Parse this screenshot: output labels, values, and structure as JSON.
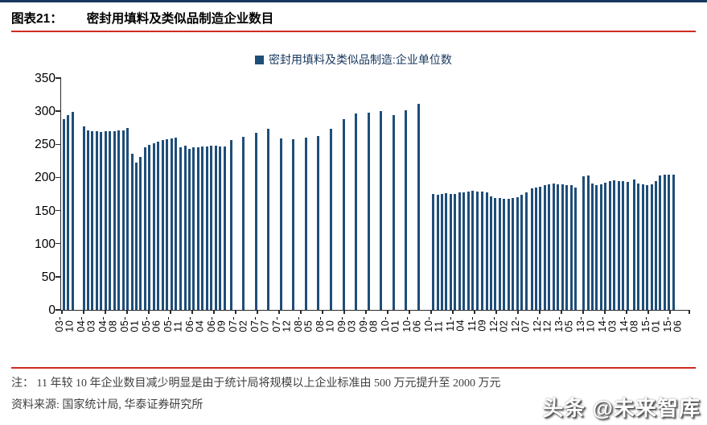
{
  "page": {
    "title_prefix": "图表21：",
    "title": "密封用填料及类似品制造企业数目",
    "note": "注： 11 年较 10 年企业数目减少明显是由于统计局将规模以上企业标准由 500 万元提升至 2000 万元",
    "source": "资料来源: 国家统计局, 华泰证券研究所",
    "watermark": "头条 @未来智库"
  },
  "colors": {
    "bar": "#1F4E79",
    "top_rule": "#17375E",
    "accent_red": "#D02B20",
    "legend_text": "#17375E",
    "note_text": "#3F3F3F"
  },
  "chart_data": {
    "type": "bar",
    "title": "密封用填料及类似品制造企业数目",
    "legend": "密封用填料及类似品制造:企业单位数",
    "ylabel": "",
    "xlabel": "",
    "ylim": [
      0,
      350
    ],
    "y_ticks": [
      0,
      50,
      100,
      150,
      200,
      250,
      300,
      350
    ],
    "grid": false,
    "legend_position": "top-center",
    "x_tick_labels": [
      "03-10",
      "04-03",
      "04-08",
      "05-01",
      "05-06",
      "05-11",
      "06-04",
      "06-09",
      "07-02",
      "07-07",
      "07-12",
      "08-05",
      "08-10",
      "09-03",
      "09-08",
      "10-01",
      "10-06",
      "10-11",
      "11-04",
      "11-09",
      "12-02",
      "12-07",
      "12-12",
      "13-05",
      "13-10",
      "14-03",
      "14-08",
      "15-01",
      "15-06"
    ],
    "x_unit": "px (time position on axis, labels every 5 months)",
    "bars": [
      [
        78,
        288
      ],
      [
        83.5,
        294
      ],
      [
        89,
        299
      ],
      [
        103,
        277
      ],
      [
        108.5,
        271
      ],
      [
        113.9,
        270
      ],
      [
        119.4,
        270
      ],
      [
        124.8,
        269
      ],
      [
        130.3,
        270
      ],
      [
        135.7,
        270
      ],
      [
        141.2,
        270
      ],
      [
        146.6,
        271
      ],
      [
        152.1,
        271
      ],
      [
        157.5,
        275
      ],
      [
        163,
        236
      ],
      [
        168.5,
        223
      ],
      [
        173.9,
        231
      ],
      [
        179.4,
        245
      ],
      [
        184.8,
        249
      ],
      [
        190.3,
        252
      ],
      [
        195.7,
        254
      ],
      [
        201.2,
        256
      ],
      [
        206.6,
        258
      ],
      [
        212.1,
        259
      ],
      [
        217.5,
        260
      ],
      [
        223.5,
        246
      ],
      [
        229,
        248
      ],
      [
        234.4,
        243
      ],
      [
        239.9,
        245
      ],
      [
        245.3,
        246
      ],
      [
        250.8,
        247
      ],
      [
        256.2,
        247
      ],
      [
        261.7,
        248
      ],
      [
        267.1,
        248
      ],
      [
        272.6,
        247
      ],
      [
        278,
        247
      ],
      [
        286,
        257
      ],
      [
        301.6,
        261
      ],
      [
        317.1,
        267
      ],
      [
        332.7,
        273
      ],
      [
        348.2,
        259
      ],
      [
        363.8,
        258
      ],
      [
        379.3,
        260
      ],
      [
        394.9,
        262
      ],
      [
        410.4,
        274
      ],
      [
        426,
        288
      ],
      [
        441.5,
        296
      ],
      [
        457.1,
        298
      ],
      [
        472.6,
        300
      ],
      [
        488.2,
        294
      ],
      [
        503.7,
        301
      ],
      [
        519.3,
        311
      ],
      [
        537.5,
        175
      ],
      [
        543,
        174
      ],
      [
        548.4,
        175
      ],
      [
        553.9,
        176
      ],
      [
        559.3,
        175
      ],
      [
        564.8,
        175
      ],
      [
        570.2,
        177
      ],
      [
        575.7,
        178
      ],
      [
        581.1,
        179
      ],
      [
        586.6,
        180
      ],
      [
        592,
        179
      ],
      [
        598.5,
        179
      ],
      [
        604,
        178
      ],
      [
        609.4,
        171
      ],
      [
        614.9,
        169
      ],
      [
        620.3,
        169
      ],
      [
        625.8,
        168
      ],
      [
        631.2,
        168
      ],
      [
        636.7,
        169
      ],
      [
        642.1,
        170
      ],
      [
        647.6,
        174
      ],
      [
        653,
        178
      ],
      [
        660,
        183
      ],
      [
        665.5,
        185
      ],
      [
        670.9,
        186
      ],
      [
        676.4,
        188
      ],
      [
        681.8,
        190
      ],
      [
        687.3,
        191
      ],
      [
        692.7,
        190
      ],
      [
        698.2,
        190
      ],
      [
        703.6,
        189
      ],
      [
        709.1,
        188
      ],
      [
        714.5,
        185
      ],
      [
        724.5,
        202
      ],
      [
        730,
        203
      ],
      [
        735.4,
        191
      ],
      [
        740.9,
        189
      ],
      [
        746.3,
        190
      ],
      [
        751.8,
        192
      ],
      [
        757.2,
        195
      ],
      [
        762.7,
        196
      ],
      [
        768.1,
        195
      ],
      [
        773.6,
        195
      ],
      [
        779,
        193
      ],
      [
        787.5,
        197
      ],
      [
        792.9,
        191
      ],
      [
        798.3,
        190
      ],
      [
        803.7,
        189
      ],
      [
        809.1,
        190
      ],
      [
        814.5,
        195
      ],
      [
        819.9,
        203
      ],
      [
        825.3,
        204
      ],
      [
        830.7,
        204
      ],
      [
        836.1,
        204
      ]
    ]
  }
}
